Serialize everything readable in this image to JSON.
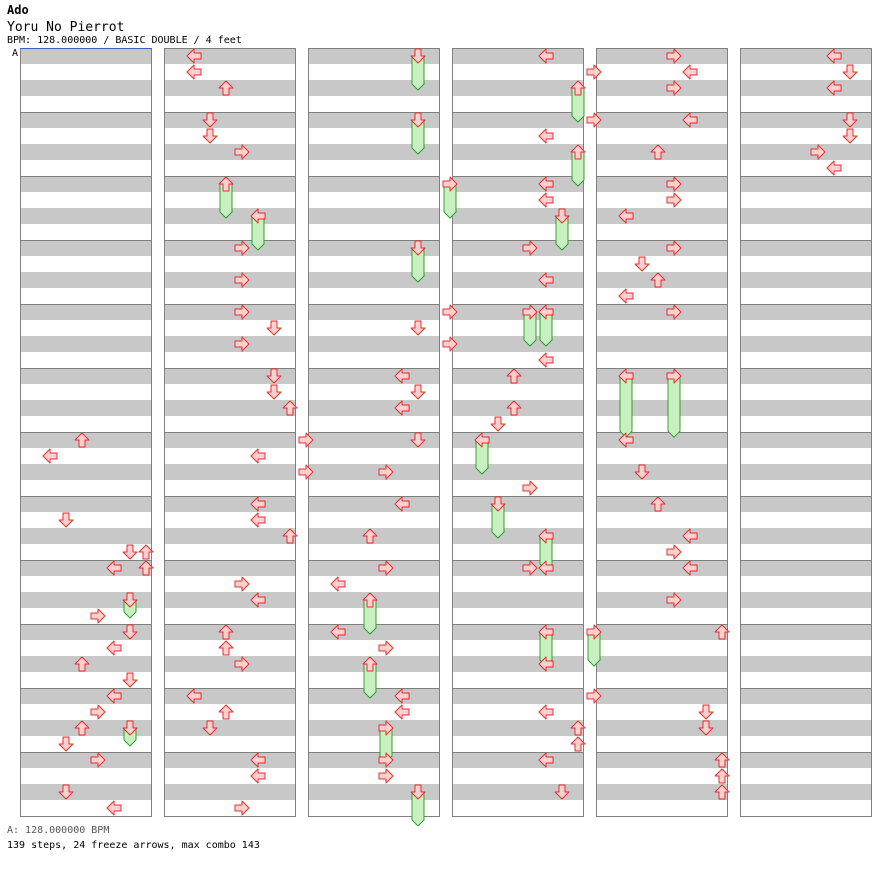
{
  "header": {
    "artist": "Ado",
    "title": "Yoru No Pierrot",
    "meta": "BPM: 128.000000 / BASIC DOUBLE / 4 feet"
  },
  "bpm_marker": "A",
  "footer": {
    "bpm_line": "A: 128.000000 BPM",
    "stats": "139 steps, 24 freeze arrows, max combo 143"
  },
  "colors": {
    "band": "#c8c8c8",
    "arrow_fill": "#ffd0d0",
    "arrow_stroke": "#e03030",
    "freeze_fill": "#c8f0c0",
    "freeze_stroke": "#30a030",
    "border": "#808080"
  },
  "chart": {
    "panels": 6,
    "measures_per_panel": 12,
    "lanes": 8,
    "lane_directions": [
      "left",
      "down",
      "up",
      "right",
      "left",
      "down",
      "up",
      "right"
    ],
    "notes": [
      [
        0,
        5,
        0,
        5
      ],
      [
        0,
        6,
        2,
        0
      ],
      [
        0,
        7,
        1,
        1
      ],
      [
        0,
        7,
        5,
        3
      ],
      [
        0,
        7,
        6,
        3
      ],
      [
        0,
        8,
        6,
        0
      ],
      [
        0,
        8,
        3,
        3
      ],
      [
        0,
        8,
        4,
        0
      ],
      [
        0,
        9,
        5,
        0
      ],
      [
        0,
        9,
        4,
        1
      ],
      [
        0,
        9,
        2,
        2
      ],
      [
        0,
        9,
        5,
        3
      ],
      [
        0,
        10,
        4,
        0
      ],
      [
        0,
        10,
        3,
        1
      ],
      [
        0,
        10,
        2,
        2
      ],
      [
        0,
        10,
        1,
        3
      ],
      [
        0,
        11,
        3,
        0
      ],
      [
        0,
        11,
        1,
        2
      ],
      [
        0,
        11,
        4,
        3
      ],
      [
        1,
        0,
        0,
        0
      ],
      [
        1,
        0,
        0,
        1
      ],
      [
        1,
        0,
        2,
        2
      ],
      [
        1,
        1,
        1,
        0
      ],
      [
        1,
        1,
        1,
        1
      ],
      [
        1,
        1,
        3,
        2
      ],
      [
        1,
        3,
        3,
        0
      ],
      [
        1,
        3,
        3,
        2
      ],
      [
        1,
        4,
        3,
        0
      ],
      [
        1,
        4,
        5,
        1
      ],
      [
        1,
        4,
        3,
        2
      ],
      [
        1,
        5,
        5,
        0
      ],
      [
        1,
        5,
        5,
        1
      ],
      [
        1,
        5,
        6,
        2
      ],
      [
        1,
        6,
        7,
        0
      ],
      [
        1,
        6,
        4,
        1
      ],
      [
        1,
        6,
        7,
        2
      ],
      [
        1,
        7,
        4,
        0
      ],
      [
        1,
        7,
        4,
        1
      ],
      [
        1,
        7,
        6,
        2
      ],
      [
        1,
        8,
        3,
        1
      ],
      [
        1,
        8,
        4,
        2
      ],
      [
        1,
        9,
        2,
        0
      ],
      [
        1,
        9,
        2,
        1
      ],
      [
        1,
        9,
        3,
        2
      ],
      [
        1,
        10,
        0,
        0
      ],
      [
        1,
        10,
        2,
        1
      ],
      [
        1,
        10,
        1,
        2
      ],
      [
        1,
        11,
        4,
        0
      ],
      [
        1,
        11,
        4,
        1
      ],
      [
        1,
        11,
        3,
        3
      ],
      [
        2,
        4,
        7,
        0
      ],
      [
        2,
        4,
        5,
        1
      ],
      [
        2,
        4,
        7,
        2
      ],
      [
        2,
        5,
        4,
        0
      ],
      [
        2,
        5,
        5,
        1
      ],
      [
        2,
        5,
        4,
        2
      ],
      [
        2,
        6,
        5,
        0
      ],
      [
        2,
        6,
        3,
        2
      ],
      [
        2,
        7,
        4,
        0
      ],
      [
        2,
        7,
        2,
        2
      ],
      [
        2,
        8,
        3,
        0
      ],
      [
        2,
        8,
        0,
        1
      ],
      [
        2,
        9,
        0,
        0
      ],
      [
        2,
        9,
        3,
        1
      ],
      [
        2,
        10,
        4,
        0
      ],
      [
        2,
        10,
        4,
        1
      ],
      [
        2,
        11,
        3,
        0
      ],
      [
        2,
        11,
        3,
        1
      ],
      [
        3,
        0,
        4,
        0
      ],
      [
        3,
        0,
        7,
        1
      ],
      [
        3,
        1,
        7,
        0
      ],
      [
        3,
        1,
        4,
        1
      ],
      [
        3,
        2,
        4,
        0
      ],
      [
        3,
        2,
        4,
        1
      ],
      [
        3,
        3,
        3,
        0
      ],
      [
        3,
        3,
        4,
        2
      ],
      [
        3,
        4,
        4,
        3
      ],
      [
        3,
        5,
        2,
        0
      ],
      [
        3,
        5,
        2,
        2
      ],
      [
        3,
        5,
        1,
        3
      ],
      [
        3,
        6,
        3,
        3
      ],
      [
        3,
        8,
        3,
        0
      ],
      [
        3,
        8,
        4,
        0
      ],
      [
        3,
        9,
        4,
        2
      ],
      [
        3,
        10,
        7,
        0
      ],
      [
        3,
        10,
        4,
        1
      ],
      [
        3,
        10,
        6,
        2
      ],
      [
        3,
        10,
        6,
        3
      ],
      [
        3,
        11,
        4,
        0
      ],
      [
        3,
        11,
        5,
        2
      ],
      [
        4,
        0,
        3,
        0
      ],
      [
        4,
        0,
        4,
        1
      ],
      [
        4,
        0,
        3,
        2
      ],
      [
        4,
        1,
        4,
        0
      ],
      [
        4,
        1,
        2,
        2
      ],
      [
        4,
        2,
        3,
        0
      ],
      [
        4,
        2,
        3,
        1
      ],
      [
        4,
        2,
        0,
        2
      ],
      [
        4,
        3,
        3,
        0
      ],
      [
        4,
        3,
        1,
        1
      ],
      [
        4,
        3,
        2,
        2
      ],
      [
        4,
        3,
        0,
        3
      ],
      [
        4,
        4,
        3,
        0
      ],
      [
        4,
        6,
        0,
        0
      ],
      [
        4,
        6,
        1,
        2
      ],
      [
        4,
        7,
        2,
        0
      ],
      [
        4,
        7,
        4,
        2
      ],
      [
        4,
        7,
        3,
        3
      ],
      [
        4,
        8,
        4,
        0
      ],
      [
        4,
        8,
        3,
        2
      ],
      [
        4,
        9,
        6,
        0
      ],
      [
        4,
        10,
        5,
        1
      ],
      [
        4,
        10,
        5,
        2
      ],
      [
        4,
        11,
        6,
        0
      ],
      [
        4,
        11,
        6,
        1
      ],
      [
        4,
        11,
        6,
        2
      ],
      [
        5,
        0,
        4,
        0
      ],
      [
        5,
        0,
        5,
        1
      ],
      [
        5,
        0,
        4,
        2
      ],
      [
        5,
        1,
        5,
        0
      ],
      [
        5,
        1,
        5,
        1
      ],
      [
        5,
        1,
        3,
        2
      ],
      [
        5,
        1,
        4,
        3
      ]
    ],
    "freezes": [
      [
        0,
        8,
        5,
        2,
        3
      ],
      [
        0,
        10,
        5,
        2,
        3
      ],
      [
        1,
        2,
        2,
        0,
        2
      ],
      [
        1,
        2,
        4,
        2,
        4
      ],
      [
        2,
        0,
        5,
        0,
        2
      ],
      [
        2,
        1,
        5,
        0,
        2
      ],
      [
        2,
        2,
        7,
        0,
        2
      ],
      [
        2,
        3,
        5,
        0,
        2
      ],
      [
        2,
        8,
        2,
        2,
        4
      ],
      [
        2,
        9,
        2,
        2,
        4
      ],
      [
        2,
        10,
        3,
        2,
        4
      ],
      [
        2,
        11,
        5,
        2,
        4
      ],
      [
        3,
        0,
        6,
        2,
        4
      ],
      [
        3,
        1,
        6,
        2,
        4
      ],
      [
        3,
        2,
        5,
        2,
        4
      ],
      [
        3,
        4,
        3,
        0,
        2
      ],
      [
        3,
        4,
        4,
        0,
        2
      ],
      [
        3,
        6,
        0,
        0,
        2
      ],
      [
        3,
        7,
        1,
        0,
        2
      ],
      [
        3,
        7,
        4,
        2,
        4
      ],
      [
        3,
        9,
        4,
        0,
        2
      ],
      [
        3,
        9,
        7,
        0,
        2
      ],
      [
        4,
        5,
        0,
        0,
        3.7
      ],
      [
        4,
        5,
        3,
        0,
        3.7
      ]
    ]
  }
}
